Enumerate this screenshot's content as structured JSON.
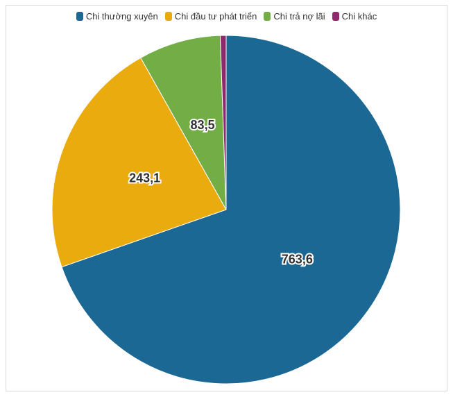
{
  "chart_data": {
    "type": "pie",
    "title": "",
    "legend_position": "top",
    "categories": [
      "Chi thường xuyên",
      "Chi đầu tư phát triển",
      "Chi trả nợ lãi",
      "Chi khác"
    ],
    "values": [
      763.6,
      243.1,
      83.5,
      6.0
    ],
    "data_labels": [
      "763,6",
      "243,1",
      "83,5",
      ""
    ],
    "colors": [
      "#1c6894",
      "#eaab0e",
      "#72ad46",
      "#8e2a6b"
    ]
  }
}
